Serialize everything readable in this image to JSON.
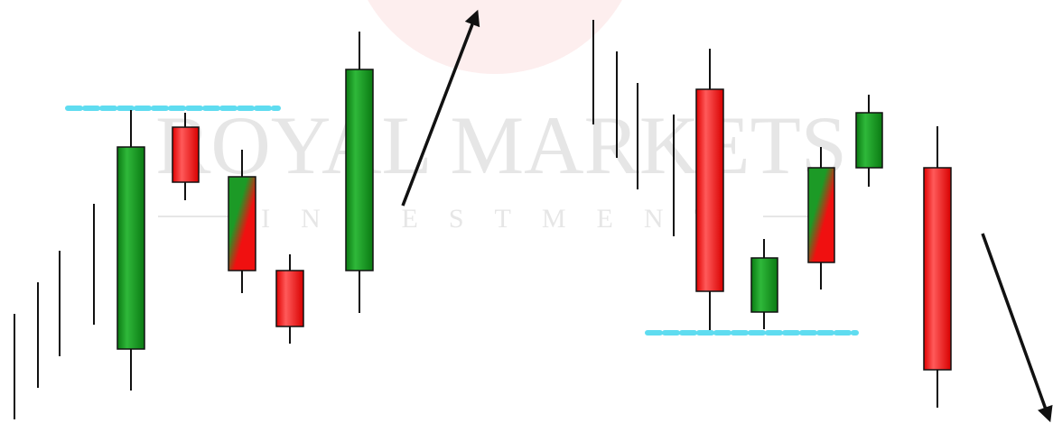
{
  "watermark": {
    "title": "ROYAL MARKETS",
    "subtitle": "INVESTMENT"
  }
}
